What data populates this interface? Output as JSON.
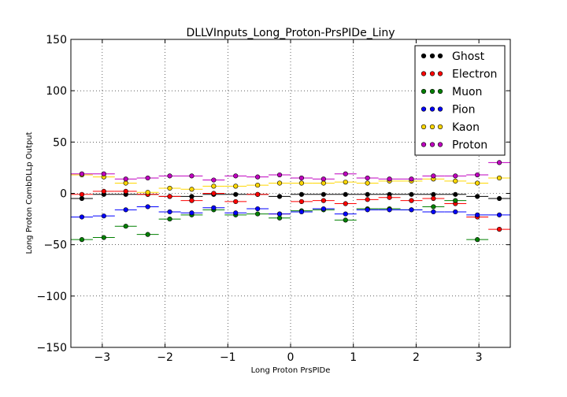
{
  "chart_data": {
    "type": "scatter",
    "title": "DLLVInputs_Long_Proton-PrsPIDe_Liny",
    "xlabel": "Long Proton PrsPIDe",
    "ylabel": "Long Proton CombDLLp Output",
    "xlim": [
      -3.5,
      3.5
    ],
    "ylim": [
      -150,
      150
    ],
    "xticks": [
      -3,
      -2,
      -1,
      0,
      1,
      2,
      3
    ],
    "xtick_labels": [
      "−3",
      "−2",
      "−1",
      "0",
      "1",
      "2",
      "3"
    ],
    "yticks": [
      150,
      100,
      50,
      0,
      -50,
      -100,
      -150
    ],
    "ytick_labels": [
      "150",
      "100",
      "50",
      "0",
      "−50",
      "−100",
      "−150"
    ],
    "grid": true,
    "legend_position": "top-right",
    "bin_half_width": 0.175,
    "x": [
      -3.325,
      -2.975,
      -2.625,
      -2.275,
      -1.925,
      -1.575,
      -1.225,
      -0.875,
      -0.525,
      -0.175,
      0.175,
      0.525,
      0.875,
      1.225,
      1.575,
      1.925,
      2.275,
      2.625,
      2.975,
      3.325
    ],
    "series": [
      {
        "name": "Ghost",
        "color": "#000000",
        "values": [
          -5,
          -1,
          -1,
          -1,
          -3,
          -3,
          -1,
          -1,
          -1,
          -3,
          -1,
          -1,
          -1,
          -1,
          -1,
          -1,
          -1,
          -1,
          -3,
          -5
        ]
      },
      {
        "name": "Electron",
        "color": "#ff0000",
        "values": [
          -1,
          2,
          2,
          -1,
          -3,
          -7,
          0,
          -8,
          -1,
          -20,
          -8,
          -7,
          -10,
          -6,
          -4,
          -7,
          -5,
          -10,
          -23,
          -35
        ]
      },
      {
        "name": "Muon",
        "color": "#008000",
        "values": [
          -45,
          -43,
          -32,
          -40,
          -25,
          -21,
          -16,
          -21,
          -20,
          -24,
          -17,
          -16,
          -26,
          -15,
          -15,
          -16,
          -13,
          -7,
          -45,
          null
        ]
      },
      {
        "name": "Pion",
        "color": "#0000ff",
        "values": [
          -23,
          -22,
          -16,
          -13,
          -18,
          -19,
          -14,
          -19,
          -15,
          -20,
          -18,
          -15,
          -20,
          -16,
          -16,
          -16,
          -18,
          -18,
          -21,
          -21
        ]
      },
      {
        "name": "Kaon",
        "color": "#ffd700",
        "values": [
          18,
          16,
          10,
          1,
          5,
          4,
          7,
          7,
          8,
          10,
          10,
          10,
          11,
          10,
          12,
          12,
          14,
          12,
          10,
          15
        ]
      },
      {
        "name": "Proton",
        "color": "#bf00bf",
        "values": [
          19,
          19,
          14,
          15,
          17,
          17,
          13,
          17,
          16,
          18,
          15,
          14,
          19,
          15,
          14,
          14,
          17,
          17,
          18,
          30
        ]
      }
    ]
  }
}
